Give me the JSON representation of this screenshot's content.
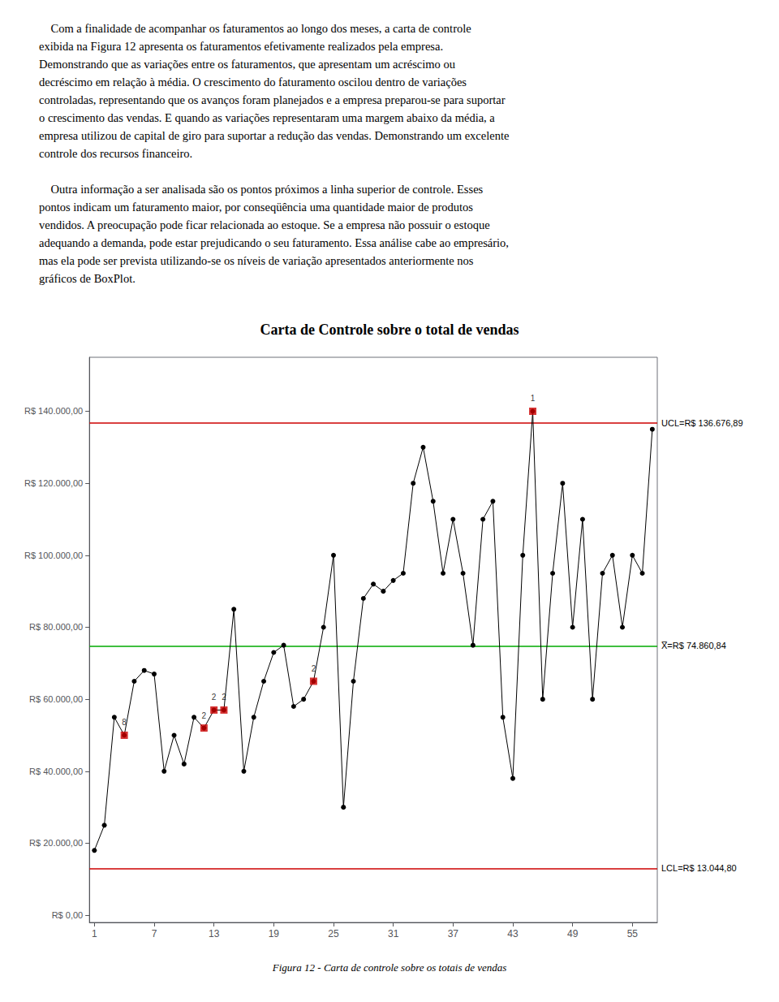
{
  "chart_data": {
    "type": "line",
    "title": "Carta de Controle sobre o total de vendas",
    "text": "    Com a finalidade de acompanhar os faturamentos ao longo dos meses, a carta de controle\nexibida na Figura 12 apresenta os faturamentos efetivamente realizados pela empresa.\nDemonstrando que as variações entre os faturamentos, que apresentam um acréscimo ou\ndecréscimo em relação à média. O crescimento do faturamento oscilou dentro de variações\ncontroladas, representando que os avanços foram planejados e a empresa preparou-se para suportar\no crescimento das vendas. E quando as variações representaram uma margem abaixo da média, a\nempresa utilizou de capital de giro para suportar a redução das vendas. Demonstrando um excelente\ncontrole dos recursos financeiro.\n\n    Outra informação a ser analisada são os pontos próximos a linha superior de controle. Esses\npontos indicam um faturamento maior, por conseqüência uma quantidade maior de produtos\nvendidos. A preocupação pode ficar relacionada ao estoque. Se a empresa não possuir o estoque\nadequando a demanda, pode estar prejudicando o seu faturamento. Essa análise cabe ao empresário,\nmas ela pode ser prevista utilizando-se os níveis de variação apresentados anteriormente nos\ngráficos de BoxPlot.",
    "caption": "Figura 12 - Carta de controle sobre os totais de vendas",
    "x": [
      1,
      2,
      3,
      4,
      5,
      6,
      7,
      8,
      9,
      10,
      11,
      12,
      13,
      14,
      15,
      16,
      17,
      18,
      19,
      20,
      21,
      22,
      23,
      24,
      25,
      26,
      27,
      28,
      29,
      30,
      31,
      32,
      33,
      34,
      35,
      36,
      37,
      38,
      39,
      40,
      41,
      42,
      43,
      44,
      45,
      46,
      47,
      48,
      49,
      50,
      51,
      52,
      53,
      54,
      55,
      56,
      57
    ],
    "values": [
      18000,
      25000,
      55000,
      50000,
      65000,
      68000,
      67000,
      40000,
      50000,
      42000,
      55000,
      52000,
      57000,
      57000,
      85000,
      40000,
      55000,
      65000,
      73000,
      75000,
      58000,
      60000,
      65000,
      80000,
      100000,
      30000,
      65000,
      88000,
      92000,
      90000,
      93000,
      95000,
      120000,
      130000,
      115000,
      95000,
      110000,
      95000,
      75000,
      110000,
      115000,
      55000,
      38000,
      100000,
      140000,
      60000,
      95000,
      120000,
      80000,
      110000,
      60000,
      95000,
      100000,
      80000,
      100000,
      95000,
      135000
    ],
    "color": "#000000",
    "marker": "circle",
    "highlighted_points": [
      {
        "x": 4,
        "label": "8",
        "color": "#cc0000",
        "marker": "square"
      },
      {
        "x": 12,
        "label": "2",
        "color": "#cc0000",
        "marker": "square"
      },
      {
        "x": 13,
        "label": "2",
        "color": "#cc0000",
        "marker": "square"
      },
      {
        "x": 14,
        "label": "2",
        "color": "#cc0000",
        "marker": "square"
      },
      {
        "x": 23,
        "label": "2",
        "color": "#cc0000",
        "marker": "square"
      },
      {
        "x": 45,
        "label": "1",
        "color": "#cc0000",
        "marker": "square"
      }
    ],
    "reference_lines": [
      {
        "y": 136676.89,
        "label": "UCL=R$ 136.676,89",
        "color": "#cc0000"
      },
      {
        "y": 13044.8,
        "label": "LCL=R$ 13.044,80",
        "color": "#cc0000"
      },
      {
        "y": 74860.84,
        "label": "X̅=R$ 74.860,84",
        "color": "#00aa00"
      }
    ],
    "xlim": [
      0.5,
      57.5
    ],
    "xticks": [
      1,
      7,
      13,
      19,
      25,
      31,
      37,
      43,
      49,
      55
    ],
    "ylim": [
      -2000,
      155000
    ],
    "yticks": [
      {
        "value": 0,
        "label": "R$ 0,00"
      },
      {
        "value": 20000,
        "label": "R$ 20.000,00"
      },
      {
        "value": 40000,
        "label": "R$ 40.000,00"
      },
      {
        "value": 60000,
        "label": "R$ 60.000,00"
      },
      {
        "value": 80000,
        "label": "R$ 80.000,00"
      },
      {
        "value": 100000,
        "label": "R$ 100.000,00"
      },
      {
        "value": 120000,
        "label": "R$ 120.000,00"
      },
      {
        "value": 140000,
        "label": "R$ 140.000,00"
      }
    ],
    "grid": false
  }
}
